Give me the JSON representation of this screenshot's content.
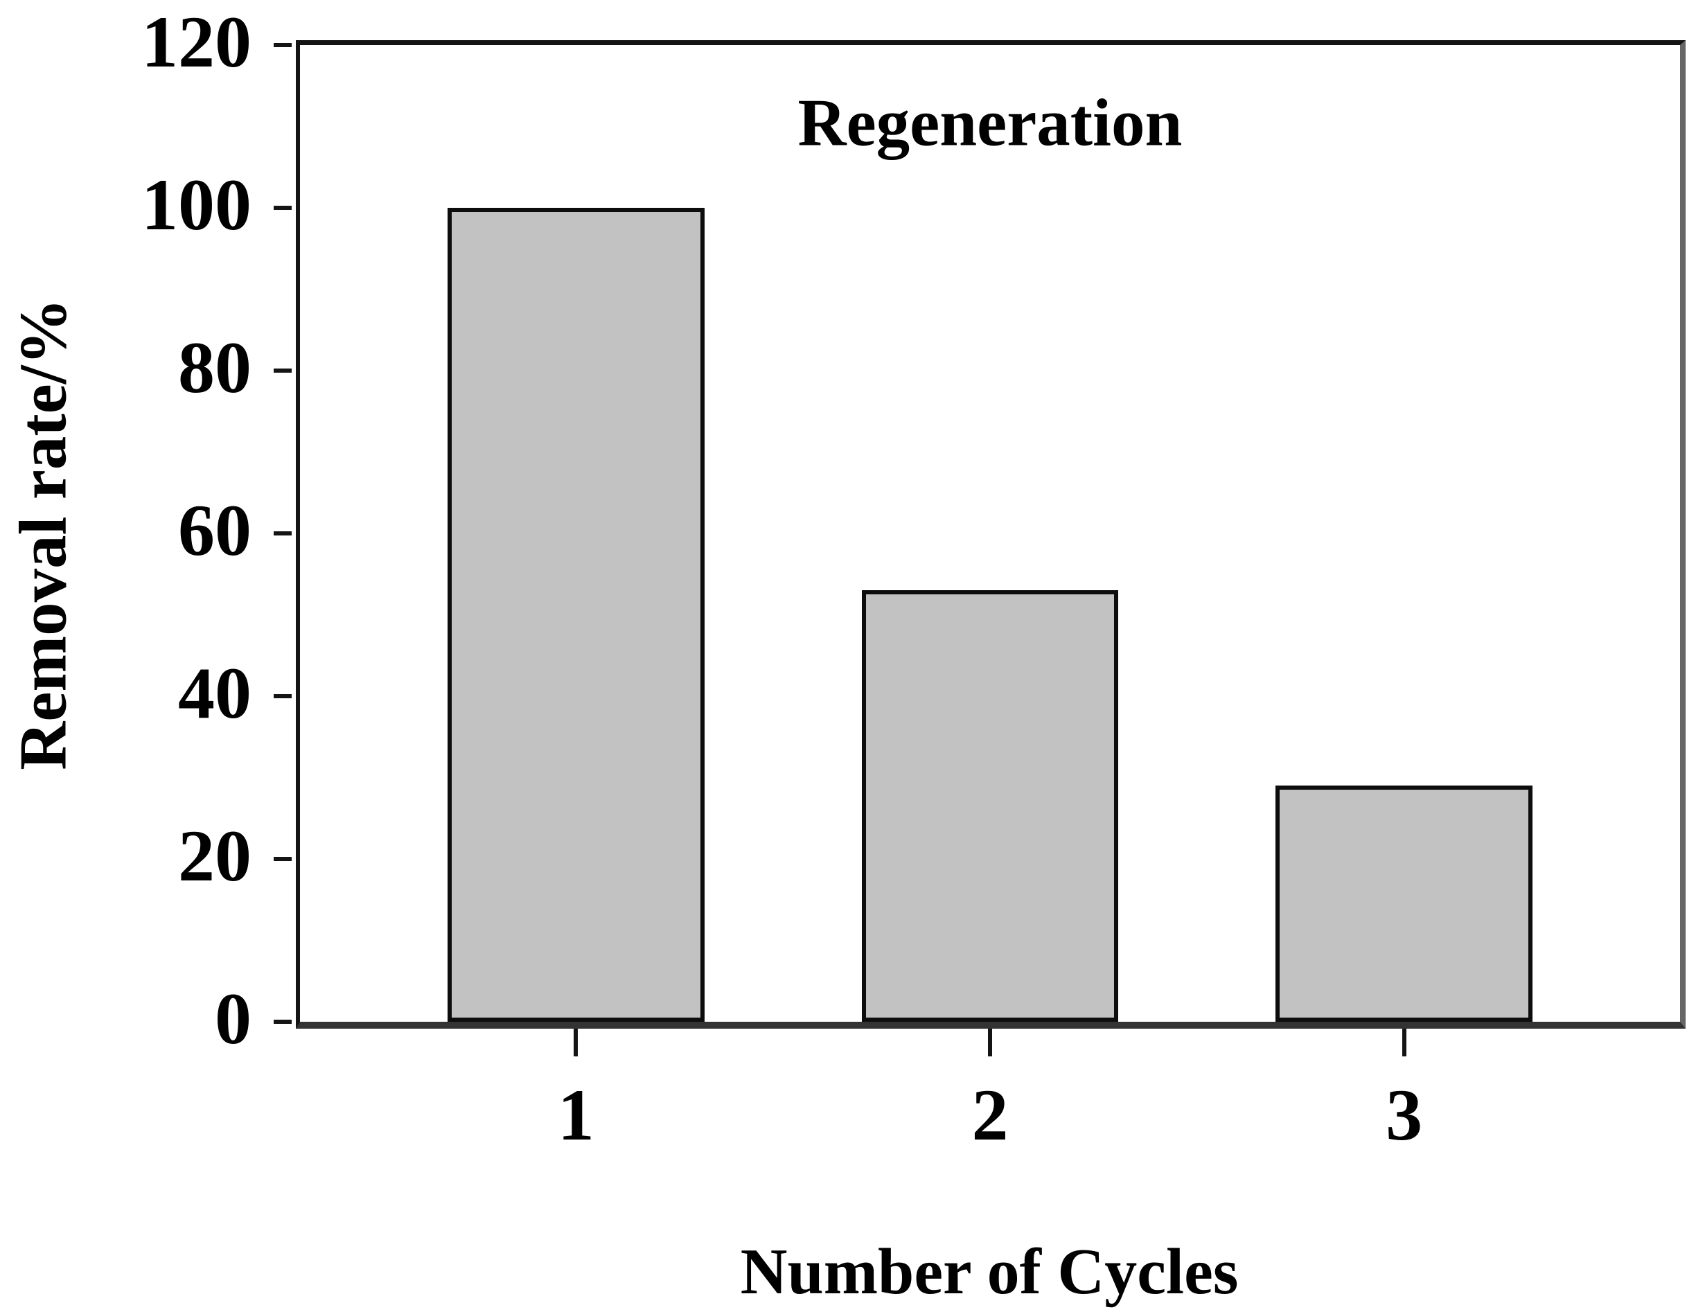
{
  "chart_data": {
    "type": "bar",
    "title": "Regeneration",
    "xlabel": "Number of Cycles",
    "ylabel": "Removal rate/%",
    "categories": [
      "1",
      "2",
      "3"
    ],
    "values": [
      100,
      53,
      29
    ],
    "ylim": [
      0,
      120
    ],
    "yticks": [
      0,
      20,
      40,
      60,
      80,
      100,
      120
    ],
    "grid": false,
    "legend": null,
    "bar_fill_color": "#c2c2c2",
    "bar_border_color": "#0d0d0d",
    "axis_color": "#141414",
    "text_color": "#000000",
    "background_color": "#ffffff"
  }
}
